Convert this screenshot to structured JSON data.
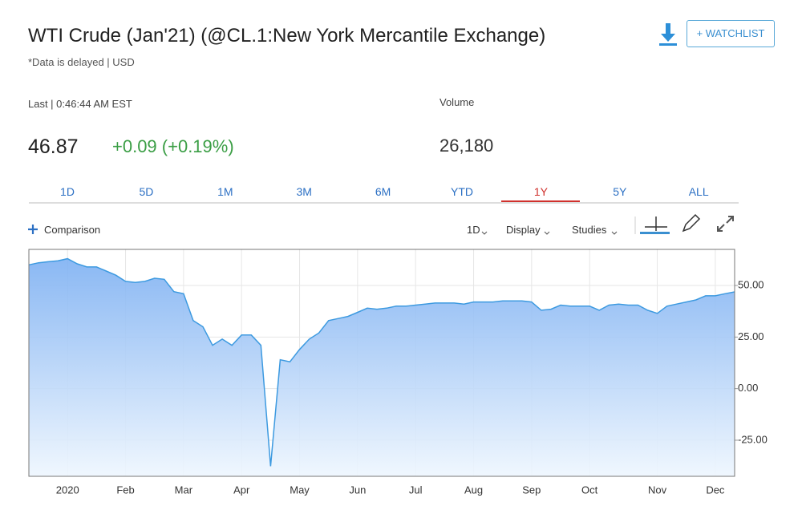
{
  "header": {
    "title": "WTI Crude (Jan'21) (@CL.1:New York Mercantile Exchange)",
    "subtitle": "*Data is delayed | USD",
    "watchlist": "+ WATCHLIST"
  },
  "quote": {
    "last_label": "Last | 0:46:44 AM EST",
    "price": "46.87",
    "change": "+0.09 (+0.19%)",
    "volume_label": "Volume",
    "volume": "26,180"
  },
  "tabs": {
    "items": [
      "1D",
      "5D",
      "1M",
      "3M",
      "6M",
      "YTD",
      "1Y",
      "5Y",
      "ALL"
    ],
    "active": 6
  },
  "toolbar": {
    "comparison": "Comparison",
    "interval": "1D",
    "display": "Display",
    "studies": "Studies"
  },
  "chart_data": {
    "type": "area",
    "color": "#3d9ae0",
    "categories": [
      null,
      null,
      null,
      null,
      "2020",
      null,
      null,
      null,
      null,
      null,
      "Feb",
      null,
      null,
      null,
      null,
      null,
      "Mar",
      null,
      null,
      null,
      null,
      null,
      "Apr",
      null,
      null,
      null,
      null,
      null,
      "May",
      null,
      null,
      null,
      null,
      null,
      "Jun",
      null,
      null,
      null,
      null,
      null,
      "Jul",
      null,
      null,
      null,
      null,
      null,
      "Aug",
      null,
      null,
      null,
      null,
      null,
      "Sep",
      null,
      null,
      null,
      null,
      null,
      "Oct",
      null,
      null,
      null,
      null,
      null,
      null,
      "Nov",
      null,
      null,
      null,
      null,
      null,
      "Dec",
      null,
      null
    ],
    "values": [
      60,
      61,
      61.5,
      62,
      63,
      60.5,
      59,
      59,
      57,
      55,
      52,
      51.5,
      52,
      53.5,
      53,
      47,
      46,
      33,
      30,
      21,
      24,
      21,
      26,
      26,
      21,
      -37.6,
      14,
      13,
      19,
      24,
      27,
      33,
      34,
      35,
      37,
      39,
      38.5,
      39,
      40,
      40,
      40.5,
      41,
      41.5,
      41.5,
      41.5,
      41,
      42,
      42,
      42,
      42.5,
      42.5,
      42.5,
      42,
      38,
      38.5,
      40.5,
      40,
      40,
      40,
      38,
      40.5,
      41,
      40.5,
      40.5,
      38,
      36.5,
      40,
      41,
      42,
      43,
      45,
      45,
      46,
      46.9
    ],
    "ylim": [
      -42.5,
      67.5
    ],
    "yticks": [
      {
        "value": -25,
        "label": "-25.00"
      },
      {
        "value": 0,
        "label": "0.00"
      },
      {
        "value": 25,
        "label": "25.00"
      },
      {
        "value": 50,
        "label": "50.00"
      }
    ],
    "grid": true
  }
}
